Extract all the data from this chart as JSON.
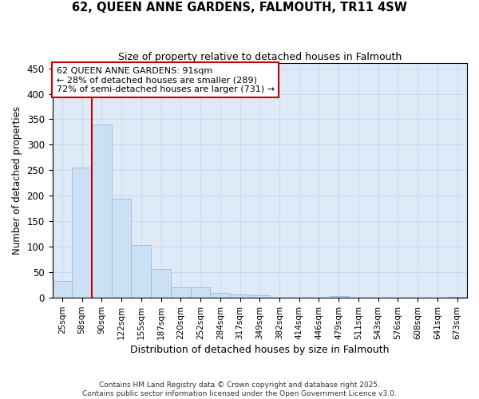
{
  "title": "62, QUEEN ANNE GARDENS, FALMOUTH, TR11 4SW",
  "subtitle": "Size of property relative to detached houses in Falmouth",
  "xlabel": "Distribution of detached houses by size in Falmouth",
  "ylabel": "Number of detached properties",
  "categories": [
    "25sqm",
    "58sqm",
    "90sqm",
    "122sqm",
    "155sqm",
    "187sqm",
    "220sqm",
    "252sqm",
    "284sqm",
    "317sqm",
    "349sqm",
    "382sqm",
    "414sqm",
    "446sqm",
    "479sqm",
    "511sqm",
    "543sqm",
    "576sqm",
    "608sqm",
    "641sqm",
    "673sqm"
  ],
  "values": [
    33,
    255,
    340,
    195,
    103,
    57,
    20,
    20,
    10,
    7,
    5,
    1,
    1,
    0,
    3,
    0,
    0,
    0,
    0,
    0,
    2
  ],
  "bar_color": "#cce0f5",
  "bar_edge_color": "#9bbad8",
  "ylim": [
    0,
    460
  ],
  "yticks": [
    0,
    50,
    100,
    150,
    200,
    250,
    300,
    350,
    400,
    450
  ],
  "vline_color": "#cc0000",
  "annotation_text": "62 QUEEN ANNE GARDENS: 91sqm\n← 28% of detached houses are smaller (289)\n72% of semi-detached houses are larger (731) →",
  "annotation_box_color": "#ffffff",
  "annotation_box_edge_color": "#cc0000",
  "grid_color": "#c8dcf0",
  "background_color": "#deeaf7",
  "footer_line1": "Contains HM Land Registry data © Crown copyright and database right 2025.",
  "footer_line2": "Contains public sector information licensed under the Open Government Licence v3.0."
}
